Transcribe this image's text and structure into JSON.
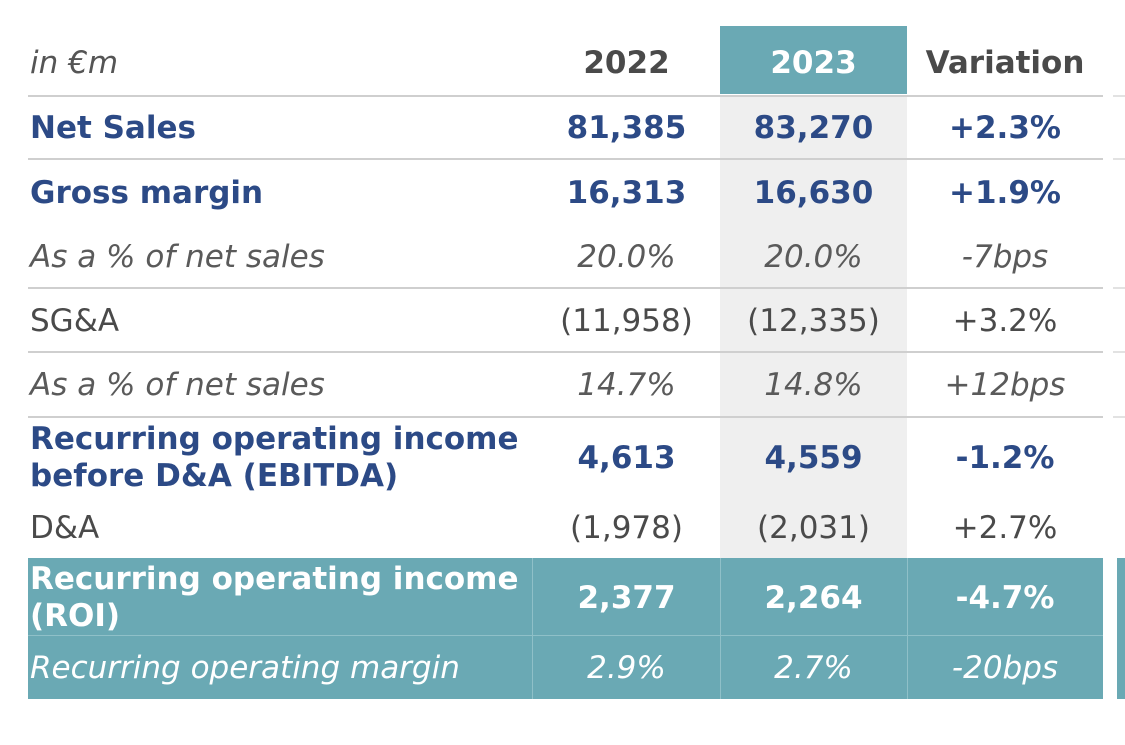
{
  "header": {
    "unit": "in €m",
    "col_2022": "2022",
    "col_2023": "2023",
    "col_variation": "Variation"
  },
  "rows": [
    {
      "label": "Net Sales",
      "v2022": "81,385",
      "v2023": "83,270",
      "variation": "+2.3%"
    },
    {
      "label": "Gross margin",
      "v2022": "16,313",
      "v2023": "16,630",
      "variation": "+1.9%"
    },
    {
      "label": "As a % of net sales",
      "v2022": "20.0%",
      "v2023": "20.0%",
      "variation": "-7bps"
    },
    {
      "label": "SG&A",
      "v2022": "(11,958)",
      "v2023": "(12,335)",
      "variation": "+3.2%"
    },
    {
      "label": "As a % of net sales",
      "v2022": "14.7%",
      "v2023": "14.8%",
      "variation": "+12bps"
    },
    {
      "label": "Recurring operating income before D&A (EBITDA)",
      "v2022": "4,613",
      "v2023": "4,559",
      "variation": "-1.2%"
    },
    {
      "label": "D&A",
      "v2022": "(1,978)",
      "v2023": "(2,031)",
      "variation": "+2.7%"
    },
    {
      "label": "Recurring operating income (ROI)",
      "v2022": "2,377",
      "v2023": "2,264",
      "variation": "-4.7%"
    },
    {
      "label": "Recurring operating margin",
      "v2022": "2.9%",
      "v2023": "2.7%",
      "variation": "-20bps"
    }
  ],
  "colors": {
    "accent": "#6aa9b4",
    "highlight_column": "#efefef",
    "bold_text": "#2c4a86"
  }
}
